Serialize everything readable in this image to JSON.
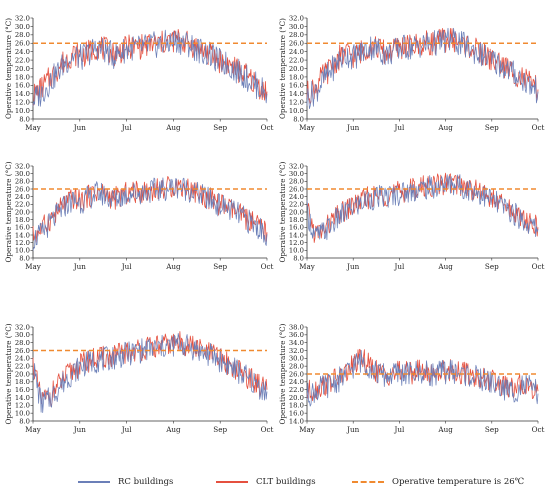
{
  "chart_data": [
    {
      "type": "line",
      "ylabel": "Operative temperature (°C)",
      "x_ticks": [
        "May",
        "Jun",
        "Jul",
        "Aug",
        "Sep",
        "Oct"
      ],
      "y_ticks": [
        "8.0",
        "10.0",
        "12.0",
        "14.0",
        "16.0",
        "18.0",
        "20.0",
        "22.0",
        "24.0",
        "26.0",
        "28.0",
        "30.0",
        "32.0"
      ],
      "ylim": [
        8,
        32
      ],
      "threshold": 26,
      "series": [
        {
          "name": "RC buildings",
          "values": [
            12.5,
            14.0,
            16.5,
            19.0,
            21.5,
            23.0,
            22.5,
            23.8,
            25.0,
            24.2,
            23.0,
            24.0,
            25.0,
            24.8,
            25.2,
            25.6,
            25.8,
            26.2,
            26.6,
            26.0,
            25.0,
            24.0,
            23.0,
            21.8,
            21.0,
            19.8,
            18.5,
            17.0,
            15.5,
            14.0
          ]
        },
        {
          "name": "CLT buildings",
          "values": [
            13.5,
            15.2,
            17.5,
            19.8,
            22.0,
            23.5,
            22.8,
            24.0,
            25.3,
            24.5,
            23.4,
            24.3,
            25.2,
            25.0,
            25.5,
            25.9,
            26.0,
            26.5,
            26.9,
            26.2,
            25.3,
            24.3,
            23.3,
            22.0,
            21.2,
            20.0,
            18.8,
            17.3,
            15.8,
            14.5
          ]
        }
      ]
    },
    {
      "type": "line",
      "ylabel": "Operative temperature (°C)",
      "x_ticks": [
        "May",
        "Jun",
        "Jul",
        "Aug",
        "Sep",
        "Oct"
      ],
      "y_ticks": [
        "8.0",
        "10.0",
        "12.0",
        "14.0",
        "16.0",
        "18.0",
        "20.0",
        "22.0",
        "24.0",
        "26.0",
        "28.0",
        "30.0",
        "32.0"
      ],
      "ylim": [
        8,
        32
      ],
      "threshold": 26,
      "series": [
        {
          "name": "RC buildings",
          "values": [
            13.0,
            14.5,
            17.0,
            19.5,
            22.0,
            23.2,
            22.8,
            24.0,
            25.2,
            24.5,
            23.2,
            24.2,
            25.1,
            25.0,
            25.4,
            25.8,
            26.0,
            26.4,
            26.8,
            26.2,
            25.2,
            24.2,
            23.2,
            22.0,
            21.2,
            20.0,
            18.8,
            17.5,
            16.0,
            14.5
          ]
        },
        {
          "name": "CLT buildings",
          "values": [
            14.0,
            15.5,
            18.0,
            20.2,
            22.5,
            23.6,
            23.0,
            24.3,
            25.5,
            24.8,
            23.5,
            24.5,
            25.3,
            25.2,
            25.6,
            26.0,
            26.2,
            26.7,
            27.0,
            26.4,
            25.5,
            24.5,
            23.5,
            22.2,
            21.4,
            20.2,
            19.0,
            17.8,
            16.3,
            15.0
          ]
        }
      ]
    },
    {
      "type": "line",
      "ylabel": "Operative temperature (°C)",
      "x_ticks": [
        "May",
        "Jun",
        "Jul",
        "Aug",
        "Sep",
        "Oct"
      ],
      "y_ticks": [
        "8.0",
        "10.0",
        "12.0",
        "14.0",
        "16.0",
        "18.0",
        "20.0",
        "22.0",
        "24.0",
        "26.0",
        "28.0",
        "30.0",
        "32.0"
      ],
      "ylim": [
        8,
        32
      ],
      "threshold": 26,
      "series": [
        {
          "name": "RC buildings",
          "values": [
            12.8,
            14.2,
            16.8,
            19.2,
            21.8,
            23.0,
            22.6,
            23.9,
            25.0,
            24.3,
            23.1,
            24.1,
            25.0,
            24.9,
            25.3,
            25.7,
            25.9,
            26.3,
            26.7,
            26.1,
            25.1,
            24.1,
            23.1,
            21.9,
            21.1,
            19.9,
            18.6,
            17.2,
            15.7,
            14.2
          ]
        },
        {
          "name": "CLT buildings",
          "values": [
            13.8,
            15.4,
            17.8,
            20.0,
            22.3,
            23.5,
            22.9,
            24.2,
            25.4,
            24.7,
            23.4,
            24.4,
            25.2,
            25.1,
            25.5,
            25.9,
            26.1,
            26.6,
            26.9,
            26.3,
            25.4,
            24.4,
            23.4,
            22.1,
            21.3,
            20.1,
            18.9,
            17.5,
            16.0,
            14.7
          ]
        }
      ]
    },
    {
      "type": "line",
      "ylabel": "Operative temperature (°C)",
      "x_ticks": [
        "May",
        "Jun",
        "Jul",
        "Aug",
        "Sep",
        "Oct"
      ],
      "y_ticks": [
        "8.0",
        "10.0",
        "12.0",
        "14.0",
        "16.0",
        "18.0",
        "20.0",
        "22.0",
        "24.0",
        "26.0",
        "28.0",
        "30.0",
        "32.0"
      ],
      "ylim": [
        8,
        32
      ],
      "threshold": 26,
      "series": [
        {
          "name": "RC buildings",
          "values": [
            20.0,
            13.5,
            14.5,
            16.5,
            18.5,
            20.0,
            21.5,
            22.5,
            23.5,
            23.8,
            24.0,
            24.6,
            25.0,
            25.5,
            26.0,
            26.3,
            26.5,
            27.0,
            27.5,
            27.0,
            26.2,
            25.5,
            24.5,
            23.5,
            22.0,
            21.0,
            19.5,
            18.0,
            16.5,
            15.5
          ]
        },
        {
          "name": "CLT buildings",
          "values": [
            20.5,
            14.2,
            15.2,
            17.2,
            19.2,
            20.6,
            22.0,
            23.0,
            24.0,
            24.2,
            24.4,
            25.0,
            25.4,
            25.9,
            26.4,
            26.7,
            26.9,
            27.4,
            27.8,
            27.3,
            26.6,
            25.9,
            24.9,
            23.9,
            22.4,
            21.4,
            19.9,
            18.4,
            16.9,
            16.0
          ]
        }
      ]
    },
    {
      "type": "line",
      "ylabel": "Operative temperature (°C)",
      "x_ticks": [
        "May",
        "Jun",
        "Jul",
        "Aug",
        "Sep",
        "Oct"
      ],
      "y_ticks": [
        "8.0",
        "10.0",
        "12.0",
        "14.0",
        "16.0",
        "18.0",
        "20.0",
        "22.0",
        "24.0",
        "26.0",
        "28.0",
        "30.0",
        "32.0"
      ],
      "ylim": [
        8,
        32
      ],
      "threshold": 26,
      "series": [
        {
          "name": "RC buildings",
          "values": [
            22.0,
            12.5,
            13.5,
            16.0,
            18.5,
            20.5,
            22.0,
            23.0,
            23.5,
            23.8,
            24.2,
            24.8,
            25.2,
            25.8,
            26.2,
            26.5,
            26.8,
            27.2,
            27.8,
            27.2,
            26.5,
            25.5,
            24.8,
            23.8,
            22.5,
            21.2,
            19.8,
            18.2,
            16.8,
            15.5
          ]
        },
        {
          "name": "CLT buildings",
          "values": [
            22.5,
            13.2,
            14.2,
            16.8,
            19.2,
            21.0,
            22.5,
            23.5,
            24.0,
            24.2,
            24.6,
            25.2,
            25.6,
            26.2,
            26.6,
            26.9,
            27.2,
            27.6,
            28.1,
            27.5,
            26.9,
            25.9,
            25.2,
            24.2,
            22.9,
            21.6,
            20.2,
            18.6,
            17.2,
            16.0
          ]
        }
      ]
    },
    {
      "type": "line",
      "ylabel": "Operative temperature (°C)",
      "x_ticks": [
        "May",
        "Jun",
        "Jul",
        "Aug",
        "Sep",
        "Oct"
      ],
      "y_ticks": [
        "14.0",
        "16.0",
        "18.0",
        "20.0",
        "22.0",
        "24.0",
        "26.0",
        "28.0",
        "30.0",
        "32.0",
        "34.0",
        "36.0",
        "38.0"
      ],
      "ylim": [
        14,
        38
      ],
      "threshold": 26,
      "series": [
        {
          "name": "RC buildings",
          "values": [
            20.5,
            21.5,
            22.5,
            23.5,
            24.5,
            26.0,
            28.5,
            29.5,
            27.5,
            26.0,
            25.5,
            26.0,
            26.2,
            26.0,
            26.5,
            26.2,
            26.0,
            26.5,
            26.8,
            26.2,
            25.8,
            25.2,
            24.5,
            24.0,
            23.0,
            22.0,
            21.5,
            23.0,
            22.5,
            21.0
          ]
        },
        {
          "name": "CLT buildings",
          "values": [
            21.2,
            22.2,
            23.0,
            24.0,
            25.0,
            26.4,
            28.8,
            29.8,
            27.8,
            26.3,
            25.8,
            26.3,
            26.5,
            26.3,
            26.8,
            26.5,
            26.3,
            26.8,
            27.1,
            26.5,
            26.1,
            25.5,
            24.8,
            24.3,
            23.4,
            22.5,
            22.0,
            23.5,
            23.0,
            21.6
          ]
        }
      ]
    }
  ],
  "legend": {
    "rc_label": "RC buildings",
    "clt_label": "CLT buildings",
    "threshold_label": "Operative temperature is 26℃"
  },
  "colors": {
    "rc": "#6b7fb8",
    "clt": "#e5503f",
    "threshold": "#f08a30",
    "axis": "#333333"
  }
}
